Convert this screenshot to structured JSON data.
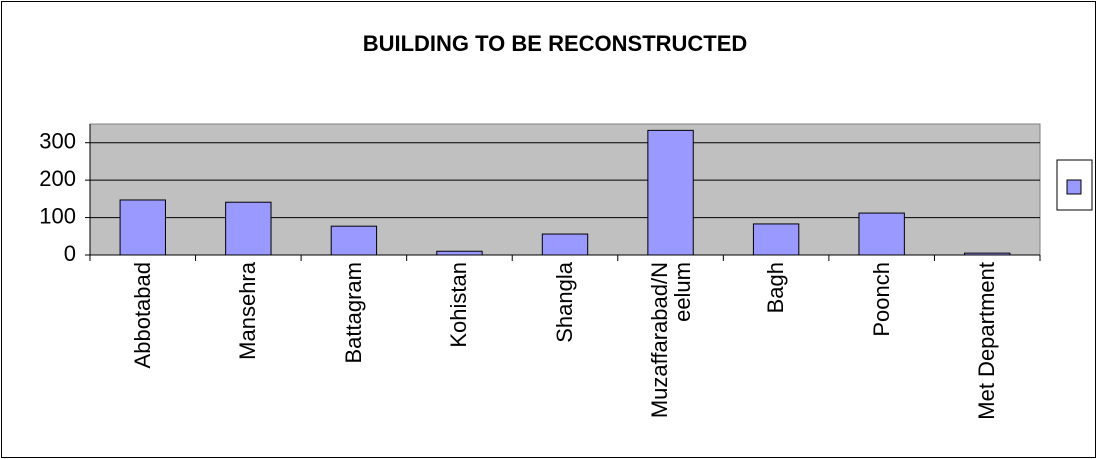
{
  "chart_data": {
    "type": "bar",
    "title": "BUILDING TO BE RECONSTRUCTED",
    "categories": [
      "Abbotabad",
      "Mansehra",
      "Battagram",
      "Kohistan",
      "Shangla",
      "Muzaffarabad/Neelum",
      "Bagh",
      "Poonch",
      "Met Department"
    ],
    "series": [
      {
        "color": "#9999ff",
        "values": [
          147,
          141,
          77,
          10,
          56,
          333,
          83,
          112,
          5
        ]
      }
    ],
    "ylim": [
      0,
      350
    ],
    "yticks": [
      0,
      100,
      200,
      300
    ],
    "grid": true,
    "legend": "right"
  }
}
